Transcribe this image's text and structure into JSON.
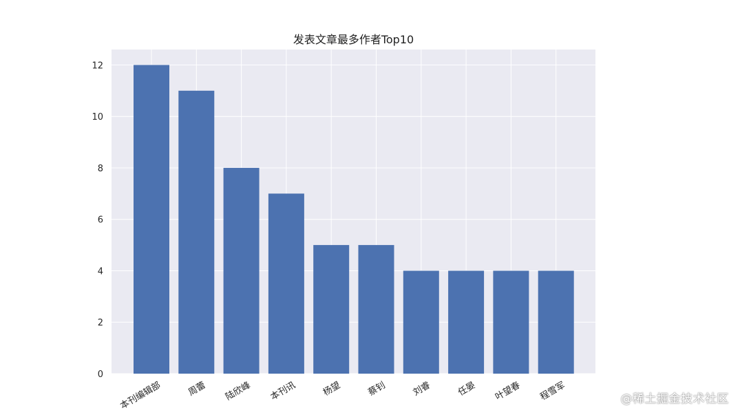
{
  "chart_data": {
    "type": "bar",
    "title": "发表文章最多作者Top10",
    "categories": [
      "本刊编辑部",
      "周蕾",
      "陆欣峰",
      "本刊讯",
      "杨望",
      "蔡钊",
      "刘睿",
      "任晏",
      "叶望春",
      "程雪军"
    ],
    "values": [
      12,
      11,
      8,
      7,
      5,
      5,
      4,
      4,
      4,
      4
    ],
    "xlabel": "",
    "ylabel": "",
    "ylim": [
      0,
      12.6
    ],
    "yticks": [
      0,
      2,
      4,
      6,
      8,
      10,
      12
    ],
    "grid": true,
    "legend": false,
    "colors": {
      "bar": "#4c72b0",
      "plot_background": "#eaeaf2",
      "grid": "#ffffff"
    }
  },
  "watermark": {
    "text": "@稀土掘金技术社区"
  }
}
